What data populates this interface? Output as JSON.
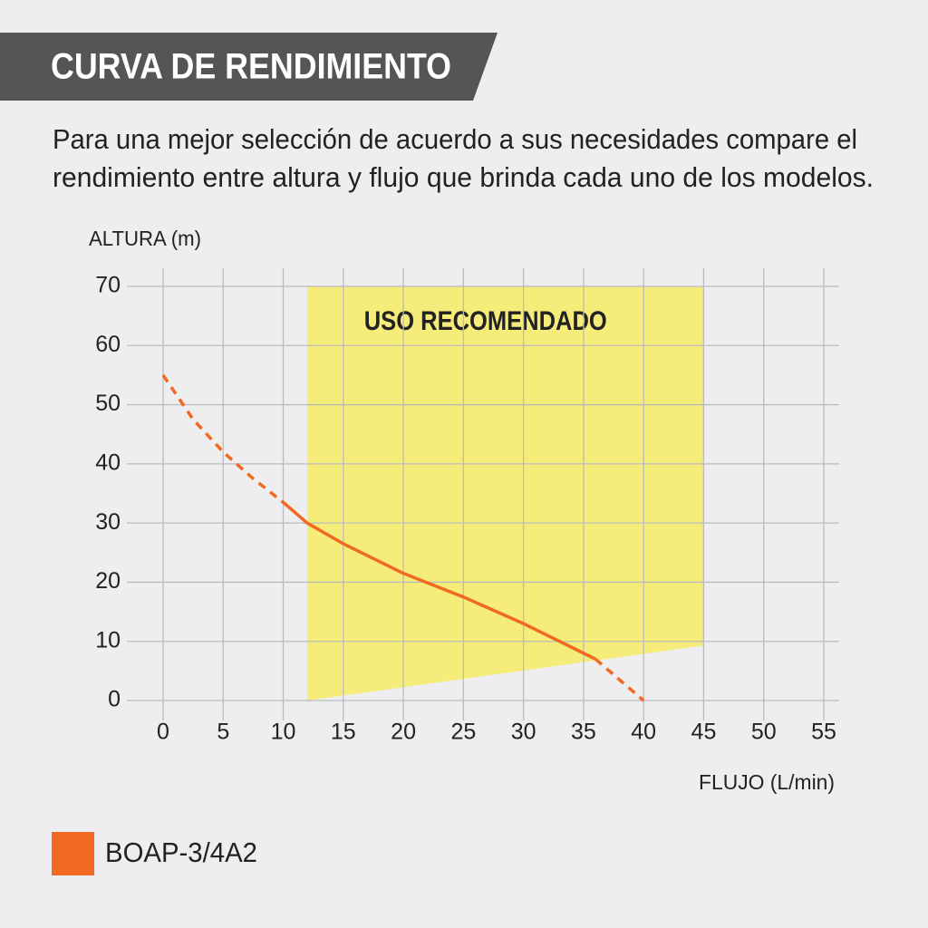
{
  "chart_data": {
    "type": "line",
    "title": "CURVA DE RENDIMIENTO",
    "subtitle": [
      "Para una mejor selección de acuerdo a sus necesidades compare el",
      "rendimiento entre altura y flujo que brinda cada uno de los modelos."
    ],
    "y_label": "ALTURA (m)",
    "x_label": "FLUJO (L/min)",
    "xlim": [
      0,
      55
    ],
    "xticks": [
      0,
      5,
      10,
      15,
      20,
      25,
      30,
      35,
      40,
      45,
      50,
      55
    ],
    "ylim": [
      0,
      70
    ],
    "yticks": [
      0,
      10,
      20,
      30,
      40,
      50,
      60,
      70
    ],
    "grid": true,
    "recommended_zone": {
      "label": "USO RECOMENDADO",
      "color": "#f5ec7a",
      "x": [
        12,
        12,
        45,
        45
      ],
      "y": [
        0,
        70,
        70,
        9.3
      ]
    },
    "series": [
      {
        "name": "BOAP-3/4A2",
        "color": "#f26a21",
        "x": [
          0,
          2.5,
          5,
          7.5,
          10,
          12,
          15,
          20,
          25,
          30,
          33,
          36,
          38,
          40
        ],
        "values": [
          55,
          47.5,
          42,
          37.5,
          33.5,
          30,
          26.5,
          21.5,
          17.5,
          13,
          10,
          7,
          3.5,
          0
        ],
        "solid_range": [
          12,
          36
        ]
      }
    ]
  }
}
